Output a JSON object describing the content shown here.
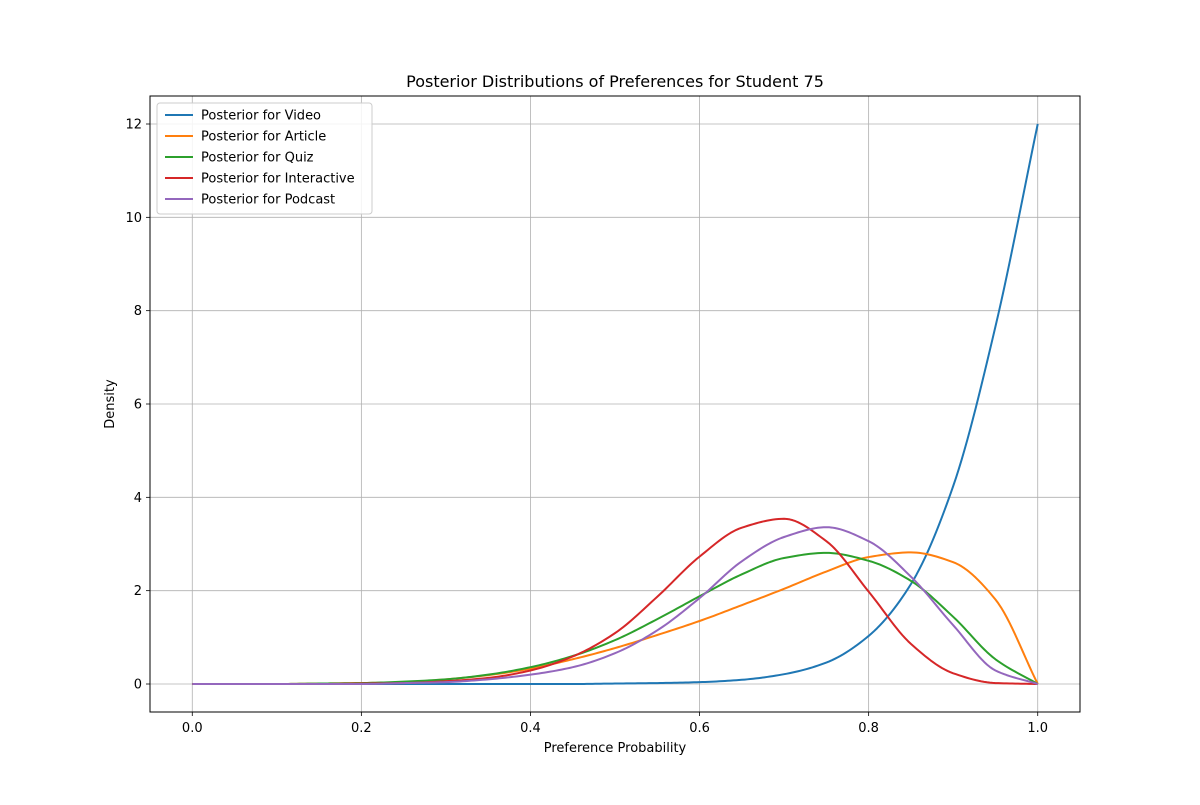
{
  "chart_data": {
    "type": "line",
    "title": "Posterior Distributions of Preferences for Student 75",
    "xlabel": "Preference Probability",
    "ylabel": "Density",
    "xlim": [
      -0.05,
      1.05
    ],
    "ylim": [
      -0.6,
      12.6
    ],
    "xticks": [
      0.0,
      0.2,
      0.4,
      0.6,
      0.8,
      1.0
    ],
    "xtick_labels": [
      "0.0",
      "0.2",
      "0.4",
      "0.6",
      "0.8",
      "1.0"
    ],
    "yticks": [
      0,
      2,
      4,
      6,
      8,
      10,
      12
    ],
    "ytick_labels": [
      "0",
      "2",
      "4",
      "6",
      "8",
      "10",
      "12"
    ],
    "grid": true,
    "legend_position": "top-left",
    "x": [
      0.0,
      0.05,
      0.1,
      0.15,
      0.2,
      0.25,
      0.3,
      0.35,
      0.4,
      0.45,
      0.5,
      0.55,
      0.6,
      0.65,
      0.7,
      0.75,
      0.8,
      0.85,
      0.9,
      0.95,
      1.0
    ],
    "series": [
      {
        "name": "Posterior for Video",
        "color": "#1f77b4",
        "values": [
          0,
          0,
          0,
          0,
          0,
          0,
          0,
          0,
          0,
          0,
          0.01,
          0.02,
          0.04,
          0.09,
          0.21,
          0.46,
          1.03,
          2.14,
          4.24,
          7.66,
          12.0
        ]
      },
      {
        "name": "Posterior for Article",
        "color": "#ff7f0e",
        "values": [
          0,
          0,
          0,
          0.01,
          0.02,
          0.04,
          0.1,
          0.19,
          0.33,
          0.53,
          0.77,
          1.05,
          1.35,
          1.69,
          2.04,
          2.41,
          2.72,
          2.82,
          2.61,
          1.81,
          0
        ]
      },
      {
        "name": "Posterior for Quiz",
        "color": "#2ca02c",
        "values": [
          0,
          0,
          0,
          0.01,
          0.02,
          0.05,
          0.1,
          0.2,
          0.36,
          0.6,
          0.94,
          1.39,
          1.88,
          2.35,
          2.7,
          2.81,
          2.64,
          2.21,
          1.44,
          0.53,
          0
        ]
      },
      {
        "name": "Posterior for Interactive",
        "color": "#d62728",
        "values": [
          0,
          0,
          0,
          0,
          0.01,
          0.02,
          0.06,
          0.13,
          0.29,
          0.59,
          1.09,
          1.87,
          2.73,
          3.35,
          3.54,
          3.06,
          1.98,
          0.86,
          0.23,
          0.02,
          0
        ]
      },
      {
        "name": "Posterior for Podcast",
        "color": "#9467bd",
        "values": [
          0,
          0,
          0,
          0,
          0,
          0.02,
          0.04,
          0.1,
          0.2,
          0.36,
          0.66,
          1.15,
          1.84,
          2.63,
          3.15,
          3.36,
          3.06,
          2.3,
          1.26,
          0.29,
          0
        ]
      }
    ]
  }
}
